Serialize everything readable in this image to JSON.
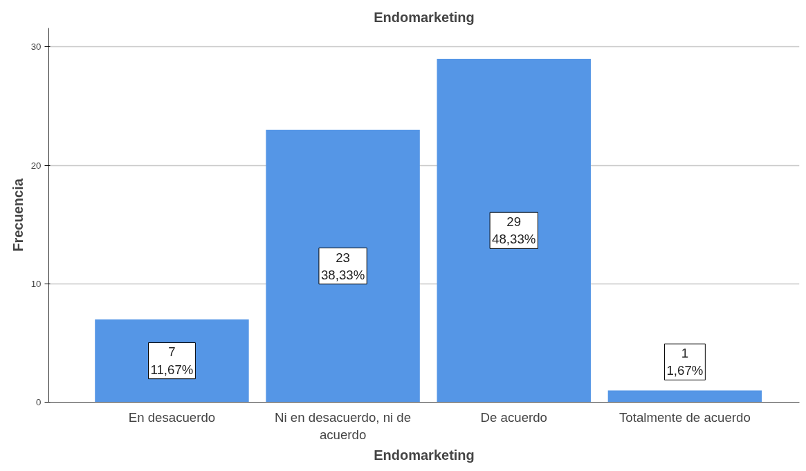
{
  "chart_data": {
    "type": "bar",
    "title": "Endomarketing",
    "xlabel": "Endomarketing",
    "ylabel": "Frecuencia",
    "categories": [
      "En desacuerdo",
      "Ni en desacuerdo, ni de acuerdo",
      "De acuerdo",
      "Totalmente de acuerdo"
    ],
    "values": [
      7,
      23,
      29,
      1
    ],
    "color": "#5596e6",
    "value_labels": [
      "7\n11,67%",
      "23\n38,33%",
      "29\n48,33%",
      "1\n1,67%"
    ],
    "ylim": [
      0,
      31.6
    ],
    "yticks": [
      0,
      10,
      20,
      30
    ],
    "grid": "y"
  }
}
